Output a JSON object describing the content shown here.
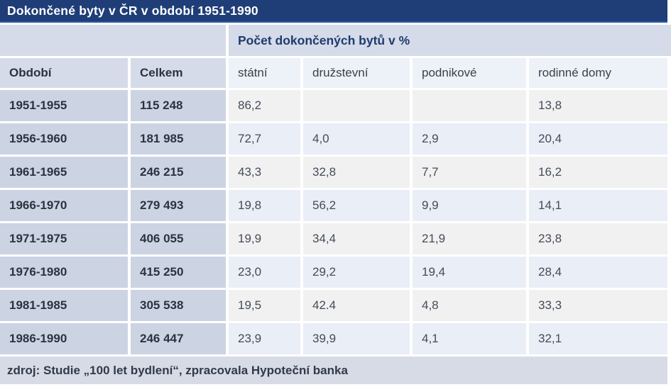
{
  "chart_data": {
    "type": "table",
    "title": "Dokončené byty v ČR v období 1951-1990",
    "group_header": "Počet dokončených bytů v %",
    "columns": [
      "Období",
      "Celkem",
      "státní",
      "družstevní",
      "podnikové",
      "rodinné domy"
    ],
    "rows": [
      [
        "1951-1955",
        "115 248",
        "86,2",
        "",
        "",
        "13,8"
      ],
      [
        "1956-1960",
        "181 985",
        "72,7",
        "4,0",
        "2,9",
        "20,4"
      ],
      [
        "1961-1965",
        "246 215",
        "43,3",
        "32,8",
        "7,7",
        "16,2"
      ],
      [
        "1966-1970",
        "279 493",
        "19,8",
        "56,2",
        "9,9",
        "14,1"
      ],
      [
        "1971-1975",
        "406 055",
        "19,9",
        "34,4",
        "21,9",
        "23,8"
      ],
      [
        "1976-1980",
        "415 250",
        "23,0",
        "29,2",
        "19,4",
        "28,4"
      ],
      [
        "1981-1985",
        "305 538",
        "19,5",
        "42.4",
        "4,8",
        "33,3"
      ],
      [
        "1986-1990",
        "246 447",
        "23,9",
        "39,9",
        "4,1",
        "32,1"
      ]
    ],
    "source": "zdroj: Studie „100 let bydlení“, zpracovala Hypoteční banka",
    "layout": {
      "grid": "off",
      "legend": "none",
      "striping": "percent columns alternate gray/blue by row"
    }
  },
  "colors": {
    "title_bar": "#1f3e78",
    "title_bar_edge": "#2f5ba9",
    "title_text": "#ffffff",
    "group_header_bg": "#d5dbe8",
    "group_header_text": "#1d3b6e",
    "left_column_bg": "#ccd4e3",
    "sub_header_bg": "#edf1f8",
    "pct_cell_gray": "#f1f1f2",
    "pct_cell_blue": "#e9eef7",
    "bold_text": "#2c333f",
    "regular_text": "#3a404b",
    "footer_bg": "#d6dbe6",
    "footer_text": "#323a49"
  }
}
